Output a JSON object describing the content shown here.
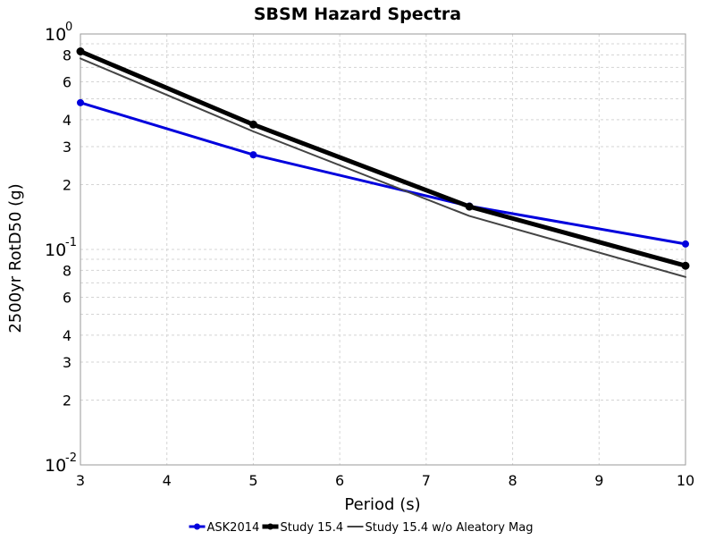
{
  "chart_data": {
    "type": "line",
    "title": "SBSM Hazard Spectra",
    "xlabel": "Period (s)",
    "ylabel": "2500yr RotD50 (g)",
    "x_scale": "linear",
    "y_scale": "log",
    "xlim": [
      3,
      10
    ],
    "ylim": [
      0.01,
      1
    ],
    "grid": true,
    "legend_position": "bottom",
    "x_ticks": [
      3,
      4,
      5,
      6,
      7,
      8,
      9,
      10
    ],
    "y_decade_ticks": [
      {
        "value": 0.01,
        "base": "10",
        "exp": "-2"
      },
      {
        "value": 0.1,
        "base": "10",
        "exp": "-1"
      },
      {
        "value": 1,
        "base": "10",
        "exp": "0"
      }
    ],
    "y_minor_ticks": [
      {
        "value": 0.02,
        "label": "2"
      },
      {
        "value": 0.03,
        "label": "3"
      },
      {
        "value": 0.04,
        "label": "4"
      },
      {
        "value": 0.05,
        "label": ""
      },
      {
        "value": 0.06,
        "label": "6"
      },
      {
        "value": 0.07,
        "label": ""
      },
      {
        "value": 0.08,
        "label": "8"
      },
      {
        "value": 0.09,
        "label": ""
      },
      {
        "value": 0.2,
        "label": "2"
      },
      {
        "value": 0.3,
        "label": "3"
      },
      {
        "value": 0.4,
        "label": "4"
      },
      {
        "value": 0.5,
        "label": ""
      },
      {
        "value": 0.6,
        "label": "6"
      },
      {
        "value": 0.7,
        "label": ""
      },
      {
        "value": 0.8,
        "label": "8"
      },
      {
        "value": 0.9,
        "label": ""
      }
    ],
    "series": [
      {
        "name": "ASK2014",
        "color": "#0000dd",
        "markers": true,
        "x": [
          3,
          5,
          7.5,
          10
        ],
        "y": [
          0.48,
          0.275,
          0.159,
          0.106
        ]
      },
      {
        "name": "Study 15.4",
        "color": "#000000",
        "markers": true,
        "x": [
          3,
          5,
          7.5,
          10
        ],
        "y": [
          0.83,
          0.38,
          0.158,
          0.084
        ]
      },
      {
        "name": "Study 15.4 w/o Aleatory Mag",
        "color": "#444444",
        "markers": false,
        "x": [
          3,
          5,
          7.5,
          10
        ],
        "y": [
          0.77,
          0.353,
          0.143,
          0.0745
        ]
      }
    ]
  }
}
